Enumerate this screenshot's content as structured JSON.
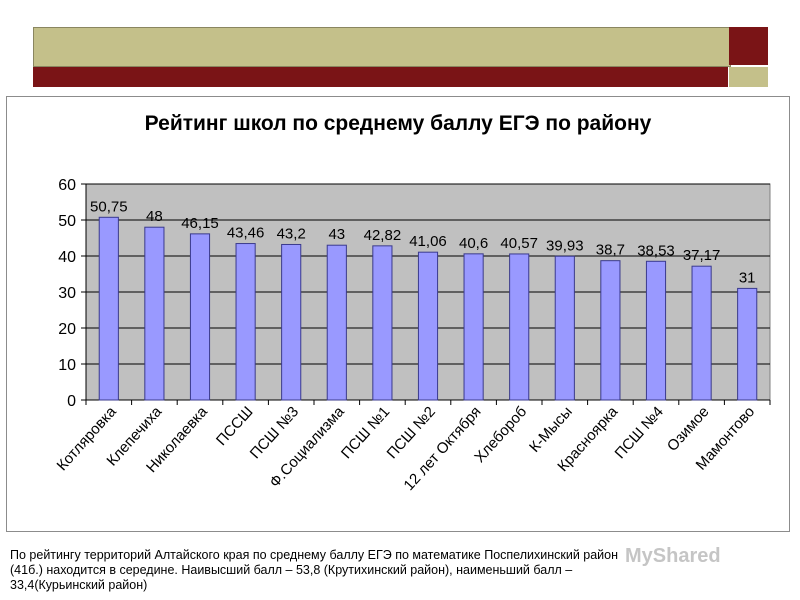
{
  "slide": {
    "colors": {
      "olive": "#c4c08a",
      "dark_red": "#7a1416"
    },
    "caption_lines": [
      "По рейтингу территорий Алтайского края по среднему баллу ЕГЭ по математике Поспелихинский район",
      "(41б.) находится в середине. Наивысший балл – 53,8 (Крутихинский район), наименьший балл –",
      "33,4(Курьинский район)"
    ],
    "watermark": "MyShared"
  },
  "chart_data": {
    "type": "bar",
    "title": "Рейтинг школ по среднему баллу ЕГЭ по району",
    "categories": [
      "Котляровка",
      "Клепечиха",
      "Николаевка",
      "ПССШ",
      "ПСШ №3",
      "Ф.Социализма",
      "ПСШ №1",
      "ПСШ №2",
      "12 лет Октября",
      "Хлебороб",
      "К-Мысы",
      "Красноярка",
      "ПСШ №4",
      "Озимое",
      "Мамонтово"
    ],
    "values": [
      50.75,
      48,
      46.15,
      43.46,
      43.2,
      43,
      42.82,
      41.06,
      40.6,
      40.57,
      39.93,
      38.7,
      38.53,
      37.17,
      31
    ],
    "value_labels": [
      "50,75",
      "48",
      "46,15",
      "43,46",
      "43,2",
      "43",
      "42,82",
      "41,06",
      "40,6",
      "40,57",
      "39,93",
      "38,7",
      "38,53",
      "37,17",
      "31"
    ],
    "ylim": [
      0,
      60
    ],
    "yticks": [
      "0",
      "10",
      "20",
      "30",
      "40",
      "50",
      "60"
    ],
    "grid": true,
    "colors": {
      "bar_fill": "#9999ff",
      "bar_stroke": "#3a3a8c",
      "plot_bg": "#c0c0c0"
    }
  }
}
